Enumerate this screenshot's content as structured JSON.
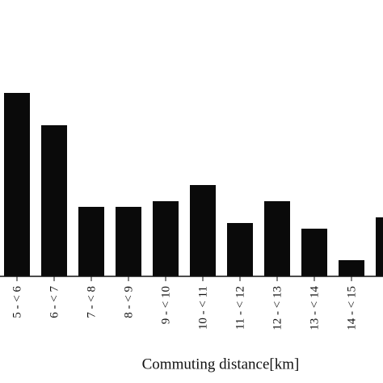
{
  "chart_data": {
    "type": "bar",
    "x_label": "Commuting distance[km]",
    "categories": [
      "5 - < 6",
      "6 - < 7",
      "7 - < 8",
      "8 - < 9",
      "9 - < 10",
      "10 - < 11",
      "11 - < 12",
      "12 - < 13",
      "13 - < 14",
      "14 - < 15",
      null
    ],
    "values": [
      227,
      187,
      86,
      86,
      93,
      113,
      66,
      93,
      59,
      20,
      73
    ],
    "color": "#0a0a0a",
    "ylim": [
      0,
      250
    ]
  }
}
